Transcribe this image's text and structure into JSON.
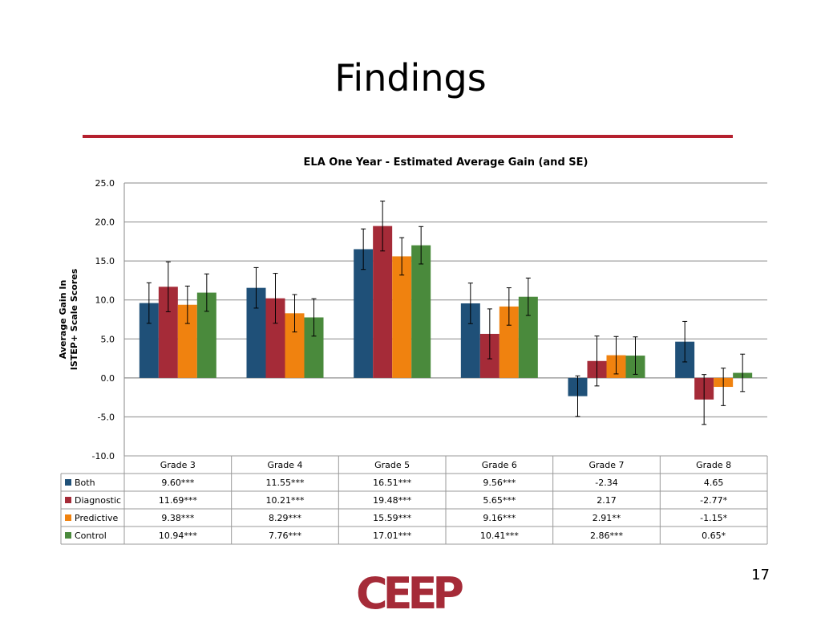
{
  "slide": {
    "title": "Findings",
    "page_number": "17",
    "logo_text": "CEEP"
  },
  "chart_data": {
    "type": "bar",
    "title": "ELA One Year - Estimated Average Gain (and SE)",
    "ylabel_lines": [
      "Average Gain In",
      "ISTEP+ Scale Scores"
    ],
    "xlabel": "",
    "ylim": [
      -10,
      25
    ],
    "yticks": [
      "25.0",
      "20.0",
      "15.0",
      "10.0",
      "5.0",
      "0.0",
      "-5.0",
      "-10.0"
    ],
    "ytick_values": [
      25,
      20,
      15,
      10,
      5,
      0,
      -5,
      -10
    ],
    "grid": true,
    "categories": [
      "Grade 3",
      "Grade 4",
      "Grade 5",
      "Grade 6",
      "Grade 7",
      "Grade 8"
    ],
    "series": [
      {
        "name": "Both",
        "color": "#1f5078",
        "values": [
          9.6,
          11.55,
          16.51,
          9.56,
          -2.34,
          4.65
        ],
        "labels": [
          "9.60***",
          "11.55***",
          "16.51***",
          "9.56***",
          "-2.34",
          "4.65"
        ],
        "error": [
          2.6,
          2.6,
          2.6,
          2.6,
          2.6,
          2.6
        ]
      },
      {
        "name": "Diagnostic",
        "color": "#a52b38",
        "values": [
          11.69,
          10.21,
          19.48,
          5.65,
          2.17,
          -2.77
        ],
        "labels": [
          "11.69***",
          "10.21***",
          "19.48***",
          "5.65***",
          "2.17",
          "-2.77*"
        ],
        "error": [
          3.2,
          3.2,
          3.2,
          3.2,
          3.2,
          3.2
        ]
      },
      {
        "name": "Predictive",
        "color": "#f0820f",
        "values": [
          9.38,
          8.29,
          15.59,
          9.16,
          2.91,
          -1.15
        ],
        "labels": [
          "9.38***",
          "8.29***",
          "15.59***",
          "9.16***",
          "2.91**",
          "-1.15*"
        ],
        "error": [
          2.4,
          2.4,
          2.4,
          2.4,
          2.4,
          2.4
        ]
      },
      {
        "name": "Control",
        "color": "#4a8a3c",
        "values": [
          10.94,
          7.76,
          17.01,
          10.41,
          2.86,
          0.65
        ],
        "labels": [
          "10.94***",
          "7.76***",
          "17.01***",
          "10.41***",
          "2.86***",
          "0.65*"
        ],
        "error": [
          2.4,
          2.4,
          2.4,
          2.4,
          2.4,
          2.4
        ]
      }
    ],
    "legend_placement": "data-table"
  }
}
